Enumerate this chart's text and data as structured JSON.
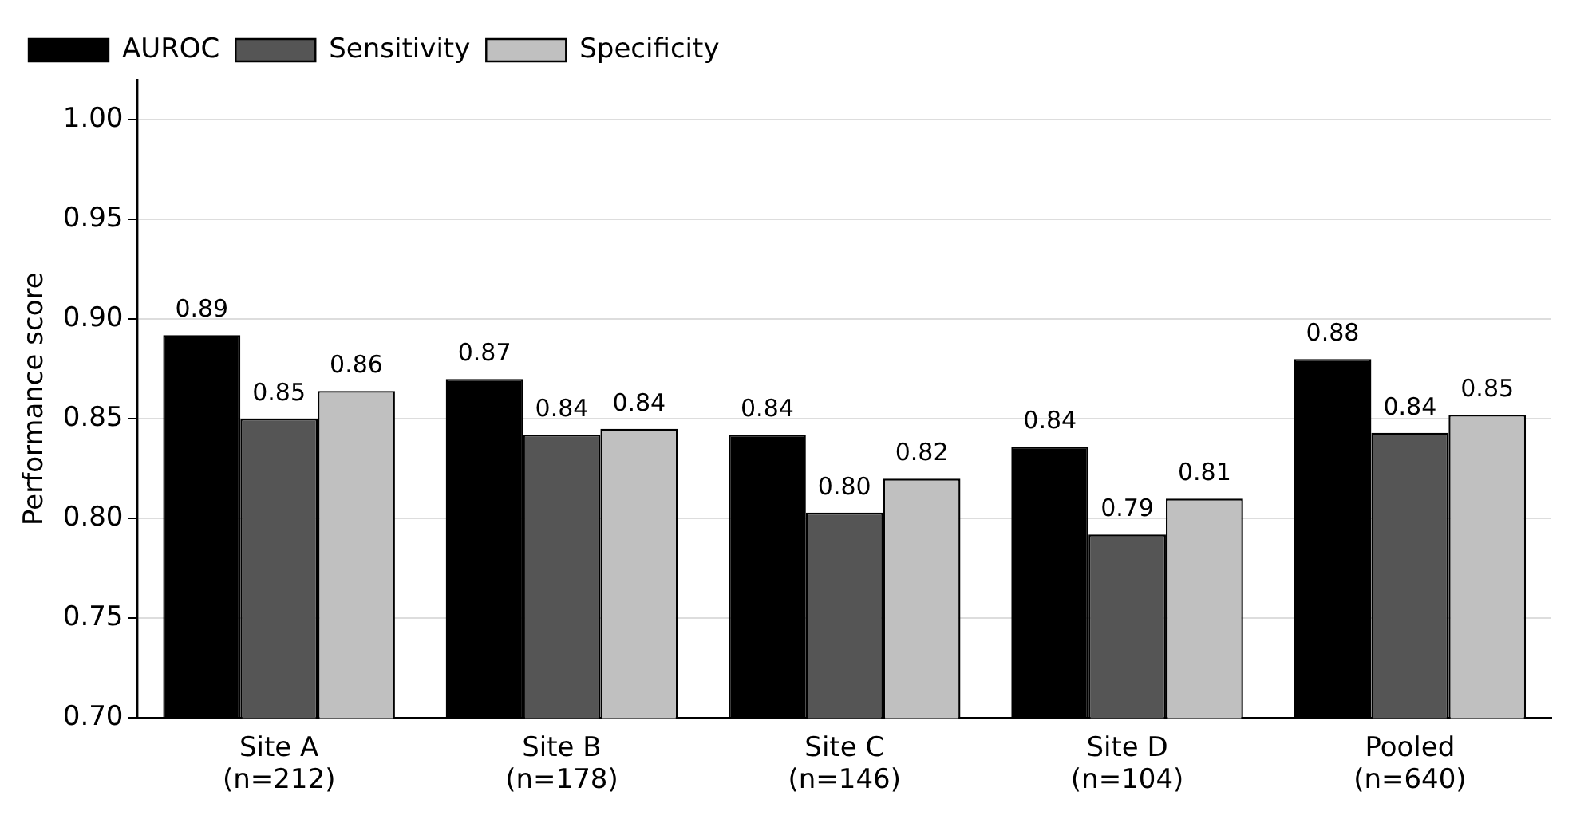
{
  "chart_data": {
    "type": "bar",
    "ylabel": "Performance score",
    "categories": [
      "Site A\n(n=212)",
      "Site B\n(n=178)",
      "Site C\n(n=146)",
      "Site D\n(n=104)",
      "Pooled\n(n=640)"
    ],
    "series": [
      {
        "name": "AUROC",
        "color": "#000000",
        "values": [
          0.892,
          0.87,
          0.842,
          0.836,
          0.88
        ],
        "value_labels": [
          "0.89",
          "0.87",
          "0.84",
          "0.84",
          "0.88"
        ]
      },
      {
        "name": "Sensitivity",
        "color": "#555555",
        "values": [
          0.85,
          0.842,
          0.803,
          0.792,
          0.843
        ],
        "value_labels": [
          "0.85",
          "0.84",
          "0.80",
          "0.79",
          "0.84"
        ]
      },
      {
        "name": "Specificity",
        "color": "#c0c0c0",
        "values": [
          0.864,
          0.845,
          0.82,
          0.81,
          0.852
        ],
        "value_labels": [
          "0.86",
          "0.84",
          "0.82",
          "0.81",
          "0.85"
        ]
      }
    ],
    "ylim": [
      0.7,
      1.02
    ],
    "yticks": [
      {
        "value": 0.7,
        "label": "0.70"
      },
      {
        "value": 0.75,
        "label": "0.75"
      },
      {
        "value": 0.8,
        "label": "0.80"
      },
      {
        "value": 0.85,
        "label": "0.85"
      },
      {
        "value": 0.9,
        "label": "0.90"
      },
      {
        "value": 0.95,
        "label": "0.95"
      },
      {
        "value": 1.0,
        "label": "1.00"
      }
    ],
    "grid": "y",
    "legend": "top left"
  }
}
